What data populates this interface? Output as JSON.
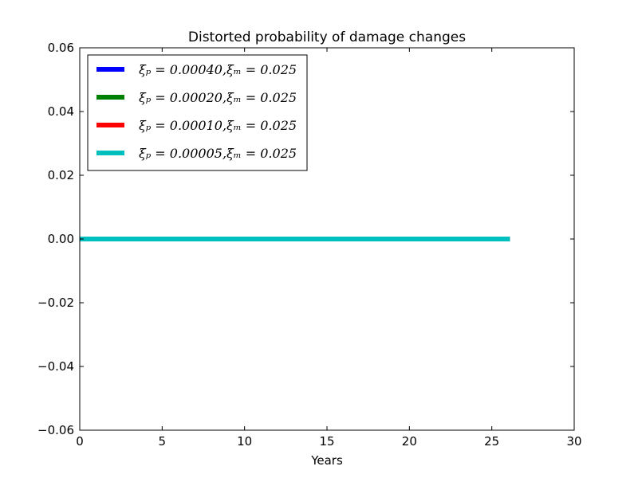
{
  "chart_data": {
    "type": "line",
    "title": "Distorted probability of damage changes",
    "xlabel": "Years",
    "ylabel": "",
    "xlim": [
      0,
      30
    ],
    "ylim": [
      -0.06,
      0.06
    ],
    "xticks": [
      0,
      5,
      10,
      15,
      20,
      25,
      30
    ],
    "xtick_labels": [
      "0",
      "5",
      "10",
      "15",
      "20",
      "25",
      "30"
    ],
    "yticks": [
      -0.06,
      -0.04,
      -0.02,
      0.0,
      0.02,
      0.04,
      0.06
    ],
    "ytick_labels": [
      "−0.06",
      "−0.04",
      "−0.02",
      "0.00",
      "0.02",
      "0.04",
      "0.06"
    ],
    "grid": false,
    "legend_position": "top-left",
    "series": [
      {
        "name": "ξₚ = 0.00040,ξₘ = 0.025",
        "color": "#0000ff",
        "x": [
          0,
          26.1
        ],
        "y": [
          0,
          0
        ]
      },
      {
        "name": "ξₚ = 0.00020,ξₘ = 0.025",
        "color": "#008000",
        "x": [
          0,
          26.1
        ],
        "y": [
          0,
          0
        ]
      },
      {
        "name": "ξₚ = 0.00010,ξₘ = 0.025",
        "color": "#ff0000",
        "x": [
          0,
          26.1
        ],
        "y": [
          0,
          0
        ]
      },
      {
        "name": "ξₚ = 0.00005,ξₘ = 0.025",
        "color": "#00bfbf",
        "x": [
          0,
          26.1
        ],
        "y": [
          0,
          0
        ]
      }
    ]
  }
}
